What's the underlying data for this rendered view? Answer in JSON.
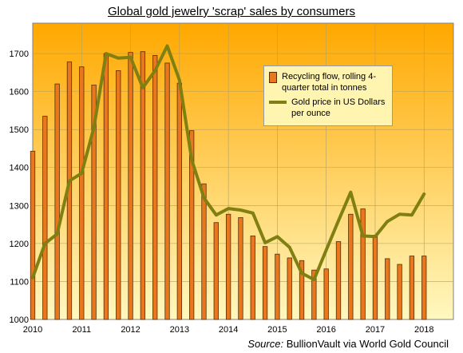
{
  "chart_data": {
    "type": "bar+line",
    "title": "Global gold jewelry  'scrap' sales by consumers",
    "xlabel": "",
    "ylabel": "",
    "ylim": [
      1000,
      1780
    ],
    "xlim": [
      2010,
      2018.6
    ],
    "yticks": [
      1000,
      1100,
      1200,
      1300,
      1400,
      1500,
      1600,
      1700
    ],
    "xticks": [
      "2010",
      "2011",
      "2012",
      "2013",
      "2014",
      "2015",
      "2016",
      "2017",
      "2018"
    ],
    "grid": true,
    "legend_placement": "upper-right",
    "colors": {
      "bar_fill": "#e8771e",
      "bar_edge": "#5a2d00",
      "line": "#7f7f12",
      "background_top": "#ffa800",
      "background_bottom": "#fff8c0"
    },
    "series": [
      {
        "name": "Recycling flow, rolling 4-quarter total in tonnes",
        "type": "bar",
        "x": [
          2010.0,
          2010.25,
          2010.5,
          2010.75,
          2011.0,
          2011.25,
          2011.5,
          2011.75,
          2012.0,
          2012.25,
          2012.5,
          2012.75,
          2013.0,
          2013.25,
          2013.5,
          2013.75,
          2014.0,
          2014.25,
          2014.5,
          2014.75,
          2015.0,
          2015.25,
          2015.5,
          2015.75,
          2016.0,
          2016.25,
          2016.5,
          2016.75,
          2017.0,
          2017.25,
          2017.5,
          2017.75,
          2018.0
        ],
        "values": [
          1443,
          1535,
          1620,
          1678,
          1665,
          1617,
          1700,
          1655,
          1703,
          1705,
          1695,
          1675,
          1622,
          1497,
          1357,
          1255,
          1277,
          1268,
          1220,
          1192,
          1172,
          1162,
          1155,
          1130,
          1133,
          1205,
          1277,
          1291,
          1222,
          1160,
          1145,
          1167,
          1167
        ]
      },
      {
        "name": "Gold price in US Dollars per ounce",
        "type": "line",
        "x": [
          2010.0,
          2010.25,
          2010.5,
          2010.75,
          2011.0,
          2011.25,
          2011.5,
          2011.75,
          2012.0,
          2012.25,
          2012.5,
          2012.75,
          2013.0,
          2013.25,
          2013.5,
          2013.75,
          2014.0,
          2014.25,
          2014.5,
          2014.75,
          2015.0,
          2015.25,
          2015.5,
          2015.75,
          2016.0,
          2016.25,
          2016.5,
          2016.75,
          2017.0,
          2017.25,
          2017.5,
          2017.75,
          2018.0
        ],
        "values": [
          1110,
          1200,
          1225,
          1365,
          1385,
          1505,
          1700,
          1688,
          1690,
          1610,
          1655,
          1720,
          1630,
          1420,
          1320,
          1275,
          1292,
          1288,
          1280,
          1202,
          1218,
          1190,
          1122,
          1105,
          1183,
          1260,
          1335,
          1220,
          1218,
          1258,
          1277,
          1275,
          1330
        ]
      }
    ],
    "source_lead": "Source:",
    "source_text": " BullionVault via World Gold Council"
  }
}
